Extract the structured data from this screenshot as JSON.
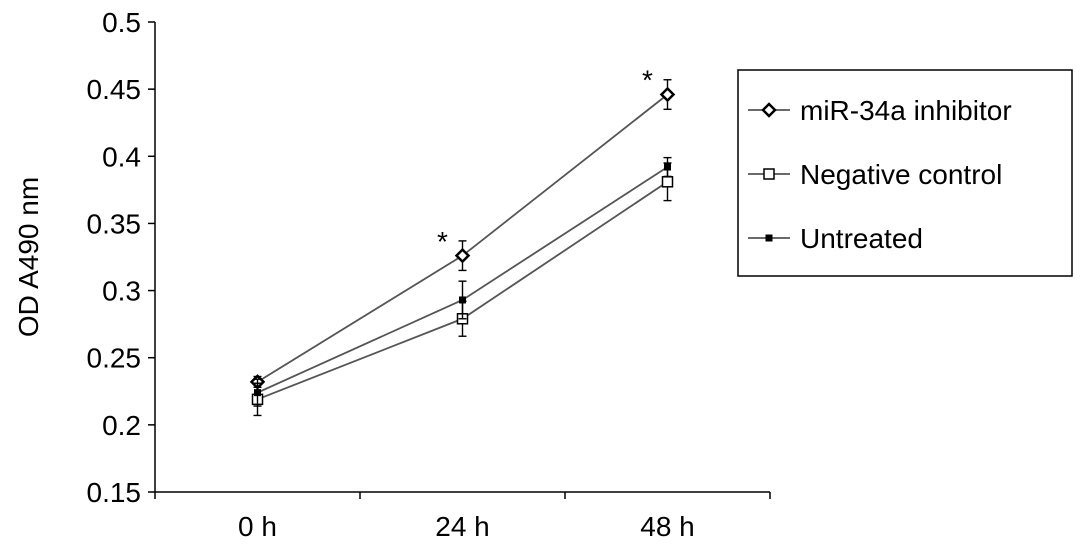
{
  "chart_data": {
    "type": "line",
    "title": "",
    "xlabel": "",
    "ylabel": "OD A490 nm",
    "categories": [
      "0 h",
      "24 h",
      "48 h"
    ],
    "ylim": [
      0.15,
      0.5
    ],
    "yticks": [
      0.15,
      0.2,
      0.25,
      0.3,
      0.35,
      0.4,
      0.45,
      0.5
    ],
    "ytick_labels": [
      "0.15",
      "0.2",
      "0.25",
      "0.3",
      "0.35",
      "0.4",
      "0.45",
      "0.5"
    ],
    "grid": false,
    "legend_position": "right",
    "series": [
      {
        "name": "miR-34a inhibitor",
        "values": [
          0.232,
          0.326,
          0.446
        ],
        "errors": [
          0.004,
          0.011,
          0.011
        ],
        "marker": "diamond",
        "color": "#000000"
      },
      {
        "name": "Negative control",
        "values": [
          0.219,
          0.279,
          0.381
        ],
        "errors": [
          0.012,
          0.013,
          0.014
        ],
        "marker": "open-square",
        "color": "#000000"
      },
      {
        "name": "Untreated",
        "values": [
          0.224,
          0.293,
          0.392
        ],
        "errors": [
          0.01,
          0.014,
          0.007
        ],
        "marker": "small-filled-square",
        "color": "#000000"
      }
    ],
    "annotations": [
      {
        "text": "*",
        "category_index": 1
      },
      {
        "text": "*",
        "category_index": 2
      }
    ]
  }
}
